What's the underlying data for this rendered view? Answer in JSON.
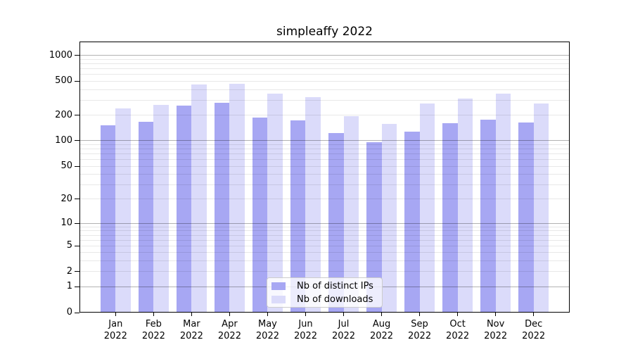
{
  "chart_data": {
    "type": "bar",
    "title": "simpleaffy 2022",
    "categories": [
      "Jan 2022",
      "Feb 2022",
      "Mar 2022",
      "Apr 2022",
      "May 2022",
      "Jun 2022",
      "Jul 2022",
      "Aug 2022",
      "Sep 2022",
      "Oct 2022",
      "Nov 2022",
      "Dec 2022"
    ],
    "series": [
      {
        "name": "Nb of distinct IPs",
        "color": "#a7a7f3",
        "values": [
          152,
          166,
          260,
          278,
          188,
          173,
          124,
          96,
          127,
          160,
          176,
          164
        ]
      },
      {
        "name": "Nb of downloads",
        "color": "#dbdbfa",
        "values": [
          239,
          265,
          454,
          466,
          360,
          324,
          196,
          159,
          273,
          311,
          358,
          272
        ]
      }
    ],
    "xlabel": "",
    "ylabel": "",
    "yscale": "log1p",
    "yticks": [
      0,
      1,
      2,
      5,
      10,
      20,
      50,
      100,
      200,
      500,
      1000
    ],
    "major_grid_values": [
      1,
      10,
      100,
      1000
    ],
    "ylim": [
      0,
      1450
    ],
    "grid": true,
    "legend_position": "lower center",
    "bar_width_units": 0.4
  }
}
